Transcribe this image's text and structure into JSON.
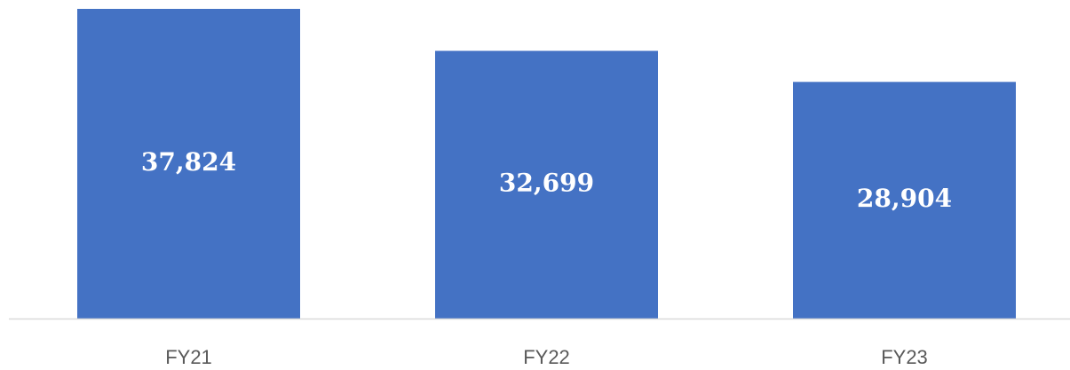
{
  "chart_data": {
    "type": "bar",
    "categories": [
      "FY21",
      "FY22",
      "FY23"
    ],
    "values": [
      37824,
      32699,
      28904
    ],
    "value_labels": [
      "37,824",
      "32,699",
      "28,904"
    ],
    "color": "#4472c4",
    "ylim": [
      0,
      37824
    ]
  }
}
